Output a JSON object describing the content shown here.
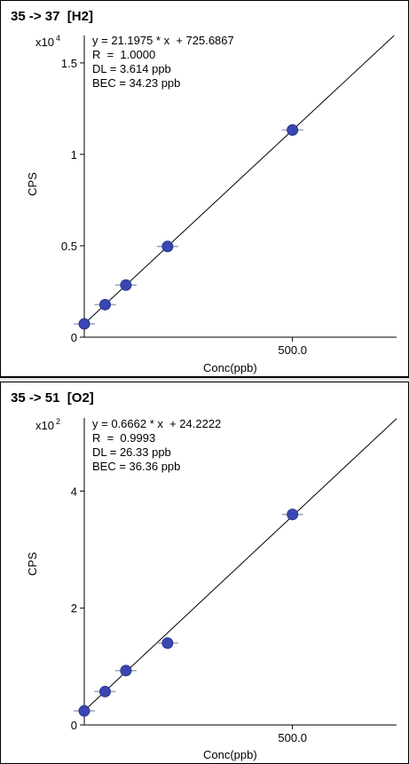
{
  "chart_data": [
    {
      "type": "scatter",
      "title": "35 -> 37  [H2]",
      "exponent_base": "x10",
      "exponent_power": "4",
      "equation": "y = 21.1975 * x  + 725.6867",
      "r_value": "R  =  1.0000",
      "dl": "DL = 3.614 ppb",
      "bec": "BEC = 34.23 ppb",
      "xlabel": "Conc(ppb)",
      "ylabel": "CPS",
      "x_tick_labels": [
        "500.0"
      ],
      "y_tick_labels": [
        "0",
        "0.5",
        "1",
        "1.5"
      ],
      "y_ticks": [
        0,
        0.5,
        1,
        1.5
      ],
      "x_ticks": [
        500
      ],
      "xlim": [
        0,
        750
      ],
      "ylim": [
        0,
        1.65
      ],
      "grid": false,
      "series": [
        {
          "x": [
            0,
            50,
            100,
            200,
            500
          ],
          "y": [
            0.073,
            0.178,
            0.285,
            0.496,
            1.133
          ]
        }
      ],
      "fit": {
        "slope": 21.1975,
        "intercept": 725.6867,
        "scale": 10000
      },
      "marker_color": "#3a47b0"
    },
    {
      "type": "scatter",
      "title": "35 -> 51  [O2]",
      "exponent_base": "x10",
      "exponent_power": "2",
      "equation": "y = 0.6662 * x  + 24.2222",
      "r_value": "R  =  0.9993",
      "dl": "DL = 26.33 ppb",
      "bec": "BEC = 36.36 ppb",
      "xlabel": "Conc(ppb)",
      "ylabel": "CPS",
      "x_tick_labels": [
        "500.0"
      ],
      "y_tick_labels": [
        "0",
        "2",
        "4"
      ],
      "y_ticks": [
        0,
        2,
        4
      ],
      "x_ticks": [
        500
      ],
      "xlim": [
        0,
        750
      ],
      "ylim": [
        0,
        5.25
      ],
      "grid": false,
      "series": [
        {
          "x": [
            0,
            50,
            100,
            200,
            500
          ],
          "y": [
            0.24,
            0.57,
            0.93,
            1.4,
            3.6
          ]
        }
      ],
      "fit": {
        "slope": 0.6662,
        "intercept": 24.2222,
        "scale": 100
      },
      "marker_color": "#3a47b0"
    }
  ]
}
